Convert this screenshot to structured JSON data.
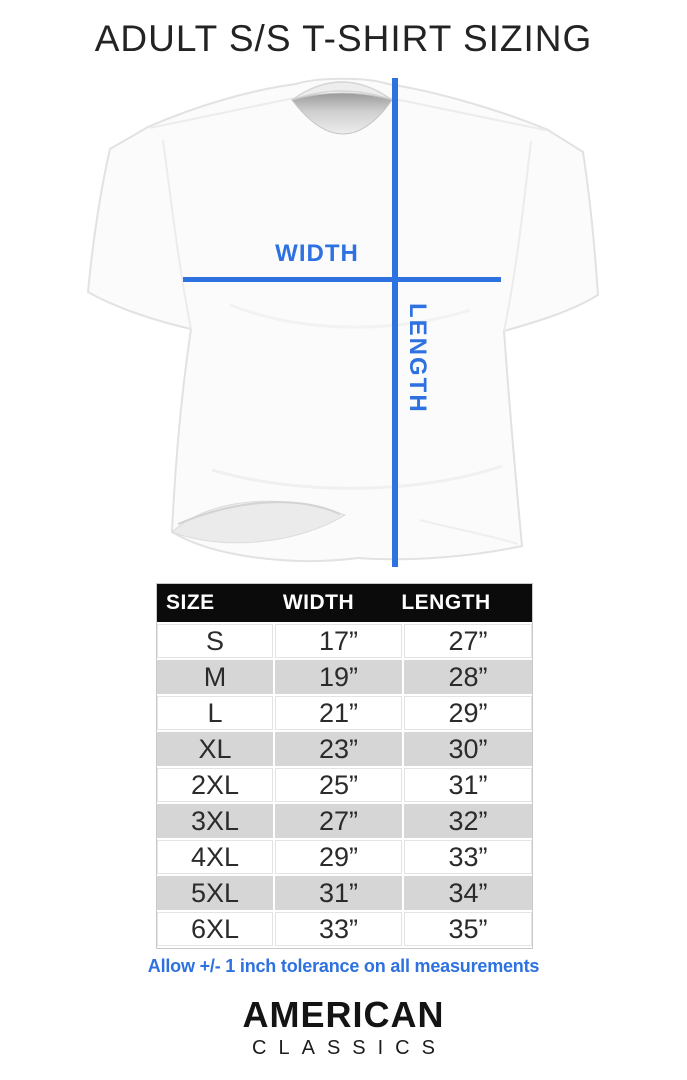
{
  "chart_data": {
    "type": "table",
    "title": "ADULT S/S T-SHIRT SIZING",
    "columns": [
      "SIZE",
      "WIDTH",
      "LENGTH"
    ],
    "rows": [
      [
        "S",
        "17”",
        "27”"
      ],
      [
        "M",
        "19”",
        "28”"
      ],
      [
        "L",
        "21”",
        "29”"
      ],
      [
        "XL",
        "23”",
        "30”"
      ],
      [
        "2XL",
        "25”",
        "31”"
      ],
      [
        "3XL",
        "27”",
        "32”"
      ],
      [
        "4XL",
        "29”",
        "33”"
      ],
      [
        "5XL",
        "31”",
        "34”"
      ],
      [
        "6XL",
        "33”",
        "35”"
      ]
    ],
    "note": "Allow +/- 1 inch tolerance on all measurements",
    "layout_hints": {
      "header_bg": "#0b0b0b",
      "alt_row_bg": "#d6d6d6",
      "accent_blue": "#2e71e0",
      "legend": "none",
      "grid": "alternating-row-shading"
    }
  },
  "diagram": {
    "width_label": "WIDTH",
    "length_label": "LENGTH"
  },
  "brand": {
    "primary": "AMERICAN",
    "secondary": "CLASSICS"
  }
}
